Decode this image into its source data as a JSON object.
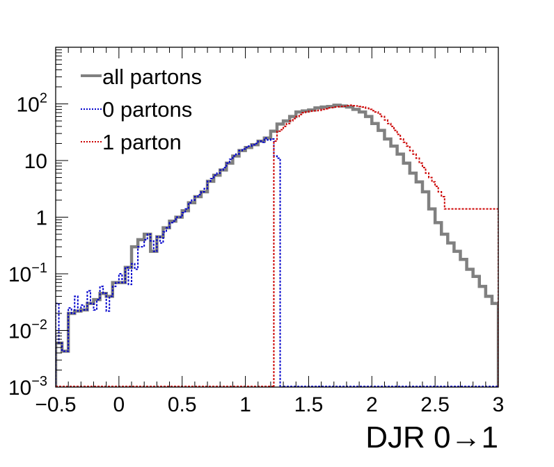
{
  "chart_data": {
    "type": "line",
    "title": "",
    "xlabel": "DJR 0→1",
    "ylabel": "",
    "xlim": [
      -0.5,
      3
    ],
    "ylim": [
      0.001,
      1000
    ],
    "yscale": "log",
    "bin_width": 0.05,
    "x_ticks": [
      "−0.5",
      "0",
      "0.5",
      "1",
      "1.5",
      "2",
      "2.5",
      "3"
    ],
    "x_tick_values": [
      -0.5,
      0,
      0.5,
      1,
      1.5,
      2,
      2.5,
      3
    ],
    "y_ticks": [
      {
        "value": 0.001,
        "base": "10",
        "exp": "−3"
      },
      {
        "value": 0.01,
        "base": "10",
        "exp": "−2"
      },
      {
        "value": 0.1,
        "base": "10",
        "exp": "−1"
      },
      {
        "value": 1,
        "base": "1",
        "exp": ""
      },
      {
        "value": 10,
        "base": "10",
        "exp": ""
      },
      {
        "value": 100,
        "base": "10",
        "exp": "2"
      }
    ],
    "legend_position": "top-left",
    "series": [
      {
        "name": "all partons",
        "color": "#808080",
        "style": "solid",
        "x": [
          -0.475,
          -0.425,
          -0.375,
          -0.325,
          -0.275,
          -0.225,
          -0.175,
          -0.125,
          -0.075,
          -0.025,
          0.025,
          0.075,
          0.125,
          0.175,
          0.225,
          0.275,
          0.325,
          0.375,
          0.425,
          0.475,
          0.525,
          0.575,
          0.625,
          0.675,
          0.725,
          0.775,
          0.825,
          0.875,
          0.925,
          0.975,
          1.025,
          1.075,
          1.125,
          1.175,
          1.225,
          1.275,
          1.325,
          1.375,
          1.425,
          1.475,
          1.525,
          1.575,
          1.625,
          1.675,
          1.725,
          1.775,
          1.825,
          1.875,
          1.925,
          1.975,
          2.025,
          2.075,
          2.125,
          2.175,
          2.225,
          2.275,
          2.325,
          2.375,
          2.425,
          2.475,
          2.525,
          2.575,
          2.625,
          2.675,
          2.725,
          2.775,
          2.825,
          2.875,
          2.925,
          2.975
        ],
        "values": [
          0.006,
          0.0043,
          0.02,
          0.022,
          0.023,
          0.03,
          0.035,
          0.045,
          0.04,
          0.07,
          0.07,
          0.13,
          0.3,
          0.4,
          0.5,
          0.25,
          0.45,
          0.65,
          0.85,
          1.0,
          1.3,
          1.8,
          2.3,
          2.8,
          4.3,
          5.5,
          6.8,
          9.0,
          12,
          15,
          17,
          19,
          22,
          25,
          33,
          44,
          50,
          60,
          72,
          75,
          78,
          85,
          88,
          90,
          95,
          92,
          88,
          80,
          72,
          60,
          45,
          34,
          24,
          18,
          13,
          9.0,
          6.0,
          4.2,
          2.8,
          1.4,
          0.8,
          0.5,
          0.35,
          0.25,
          0.18,
          0.12,
          0.09,
          0.06,
          0.04,
          0.03
        ]
      },
      {
        "name": "0 partons",
        "color": "#0000cc",
        "style": "dotted",
        "x": [
          -0.4875,
          -0.4625,
          -0.4375,
          -0.4125,
          -0.3875,
          -0.3625,
          -0.3375,
          -0.3125,
          -0.2875,
          -0.2625,
          -0.2375,
          -0.2125,
          -0.1875,
          -0.1625,
          -0.1375,
          -0.1125,
          -0.0875,
          -0.0625,
          -0.0375,
          -0.0125,
          0.0125,
          0.0375,
          0.0625,
          0.0875,
          0.1125,
          0.1375,
          0.1625,
          0.1875,
          0.2125,
          0.2375,
          0.2625,
          0.2875,
          0.3125,
          0.3375,
          0.3625,
          0.3875,
          0.4125,
          0.4375,
          0.4625,
          0.4875,
          0.5125,
          0.5375,
          0.5625,
          0.5875,
          0.6125,
          0.6375,
          0.6625,
          0.6875,
          0.7125,
          0.7375,
          0.7625,
          0.7875,
          0.8125,
          0.8375,
          0.8625,
          0.8875,
          0.9125,
          0.9375,
          0.9625,
          0.9875,
          1.0125,
          1.0375,
          1.0625,
          1.0875,
          1.1125,
          1.1375,
          1.1625,
          1.1875,
          1.2125,
          1.2375,
          1.2625,
          1.2875
        ],
        "values": [
          0.03,
          0.006,
          0.0043,
          0.0043,
          0.025,
          0.02,
          0.04,
          0.022,
          0.028,
          0.023,
          0.05,
          0.03,
          0.023,
          0.035,
          0.06,
          0.045,
          0.022,
          0.04,
          0.06,
          0.07,
          0.1,
          0.07,
          0.13,
          0.065,
          0.15,
          0.12,
          0.3,
          0.3,
          0.4,
          0.5,
          0.38,
          0.25,
          0.45,
          0.35,
          0.55,
          0.65,
          0.8,
          0.85,
          1.0,
          1.0,
          1.2,
          1.4,
          1.8,
          2.0,
          2.3,
          2.5,
          2.8,
          3.2,
          4.3,
          4.8,
          5.5,
          6.0,
          6.8,
          7.5,
          9.0,
          10.5,
          12,
          13,
          15,
          16,
          17,
          18,
          19,
          20,
          22,
          21,
          25,
          23,
          24,
          12,
          11,
          0.001
        ]
      },
      {
        "name": "1 parton",
        "color": "#cc0000",
        "style": "dotted",
        "x": [
          1.2375,
          1.2625,
          1.2875,
          1.3125,
          1.3375,
          1.3625,
          1.3875,
          1.4125,
          1.4375,
          1.4625,
          1.4875,
          1.5125,
          1.5375,
          1.5625,
          1.5875,
          1.6125,
          1.6375,
          1.6625,
          1.6875,
          1.7125,
          1.7375,
          1.7625,
          1.7875,
          1.8125,
          1.8375,
          1.8625,
          1.8875,
          1.9125,
          1.9375,
          1.9625,
          1.9875,
          2.0125,
          2.0375,
          2.0625,
          2.0875,
          2.1125,
          2.1375,
          2.1625,
          2.1875,
          2.2125,
          2.2375,
          2.2625,
          2.2875,
          2.3125,
          2.3375,
          2.3625,
          2.3875,
          2.4125,
          2.4375,
          2.4625,
          2.4875,
          2.5125,
          2.5375,
          2.5625,
          2.5875,
          2.6125,
          2.6375,
          2.6625,
          2.6875,
          2.7125,
          2.7375,
          2.7625,
          2.7875,
          2.8125,
          2.8375,
          2.8625,
          2.8875,
          2.9125,
          2.9375,
          2.9625,
          2.9875
        ],
        "values": [
          22,
          33,
          35,
          40,
          45,
          50,
          55,
          60,
          65,
          70,
          72,
          74,
          75,
          76,
          77,
          80,
          82,
          85,
          86,
          88,
          89,
          90,
          91,
          93,
          95,
          93,
          92,
          90,
          88,
          84,
          80,
          76,
          72,
          66,
          60,
          52,
          45,
          40,
          34,
          29,
          24,
          21,
          18,
          15,
          13,
          11,
          9.0,
          7.5,
          6.0,
          5.0,
          4.2,
          3.5,
          2.8,
          2.3,
          1.4,
          1.4,
          1.4,
          1.4,
          1.4,
          1.4,
          1.4,
          1.4,
          1.4,
          1.4,
          1.4,
          1.4,
          1.4,
          1.4,
          1.4,
          1.4,
          1.4
        ]
      }
    ]
  }
}
